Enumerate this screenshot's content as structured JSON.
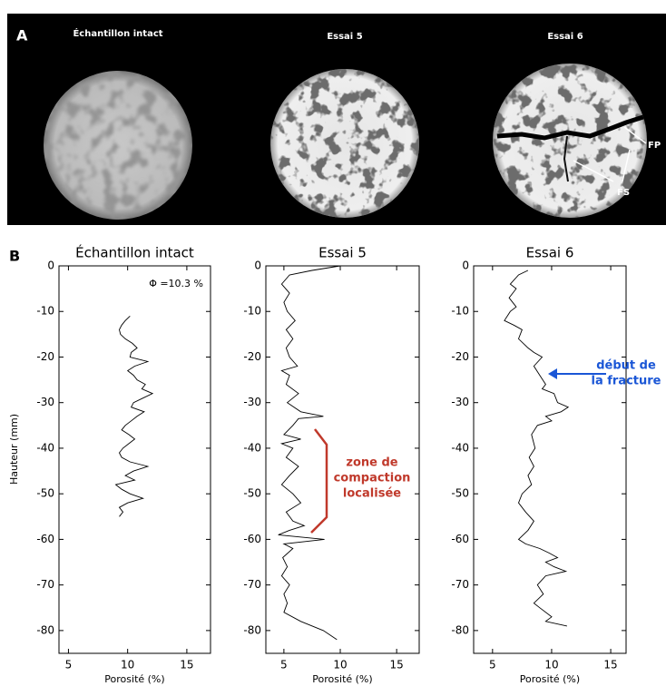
{
  "figure": {
    "panel_a": {
      "label": "A",
      "titles": [
        "Échantillon intact",
        "Essai 5",
        "Essai 6"
      ],
      "annotations": [
        "FP",
        "FS"
      ]
    },
    "panel_b": {
      "label": "B"
    }
  },
  "chart_data": [
    {
      "type": "line",
      "title": "Échantillon intact",
      "x_label": "Porosité (%)",
      "y_label": "Hauteur (mm)",
      "annotation": "Φ =10.3 %",
      "xlim": [
        4.2,
        17
      ],
      "ylim": [
        -85,
        0
      ],
      "xticks": [
        5,
        10,
        15
      ],
      "yticks": [
        0,
        -10,
        -20,
        -30,
        -40,
        -50,
        -60,
        -70,
        -80
      ],
      "series": [
        {
          "color": "#000000",
          "x": [
            10.2,
            9.8,
            9.5,
            9.3,
            9.4,
            9.8,
            10.4,
            10.8,
            10.3,
            10.2,
            11.7,
            10.6,
            10.0,
            10.5,
            10.8,
            11.5,
            11.2,
            12.1,
            11.3,
            10.5,
            10.3,
            11.4,
            10.8,
            10.3,
            9.8,
            9.5,
            10.1,
            10.6,
            10.1,
            9.6,
            9.3,
            9.5,
            10.2,
            11.7,
            10.5,
            9.8,
            10.6,
            9.0,
            9.5,
            10.2,
            11.3,
            10.0,
            9.3,
            9.6,
            9.3
          ],
          "values": [
            -11,
            -12,
            -13,
            -14,
            -15,
            -16,
            -17,
            -18,
            -19,
            -20,
            -21,
            -22,
            -23,
            -24,
            -25,
            -26,
            -27,
            -28,
            -29,
            -30,
            -31,
            -32,
            -33,
            -34,
            -35,
            -36,
            -37,
            -38,
            -39,
            -40,
            -41,
            -42,
            -43,
            -44,
            -45,
            -46,
            -47,
            -48,
            -49,
            -50,
            -51,
            -52,
            -53,
            -54,
            -55
          ]
        }
      ]
    },
    {
      "type": "line",
      "title": "Essai 5",
      "x_label": "Porosité (%)",
      "annotation_lines": [
        "zone de",
        "compaction",
        "localisée"
      ],
      "annotation_color": "#c0392b",
      "xlim": [
        3.4,
        17
      ],
      "ylim": [
        -85,
        0
      ],
      "xticks": [
        5,
        10,
        15
      ],
      "yticks": [
        0,
        -10,
        -20,
        -30,
        -40,
        -50,
        -60,
        -70,
        -80
      ],
      "series": [
        {
          "color": "#000000",
          "x": [
            10,
            7.5,
            5.5,
            4.8,
            5.5,
            5.0,
            5.3,
            6.0,
            5.2,
            5.8,
            5.2,
            5.5,
            6.2,
            4.8,
            5.5,
            5.2,
            6.3,
            5.3,
            6.5,
            8.5,
            6.3,
            5.8,
            5.0,
            6.5,
            4.8,
            5.8,
            5.2,
            6.3,
            5.5,
            4.8,
            5.8,
            6.5,
            5.2,
            5.8,
            6.8,
            5.5,
            4.5,
            8.6,
            5.0,
            5.8,
            4.9,
            5.3,
            4.8,
            5.5,
            5.0,
            5.3,
            5.0,
            6.5,
            8.5,
            9.7
          ],
          "values": [
            0,
            -1,
            -2,
            -4,
            -6,
            -8,
            -10,
            -12,
            -14,
            -16,
            -18,
            -20,
            -22,
            -23,
            -24,
            -26,
            -28,
            -30,
            -32,
            -33,
            -33.5,
            -35,
            -37,
            -38,
            -39,
            -40,
            -42,
            -44,
            -46,
            -48,
            -50,
            -52,
            -54,
            -56,
            -57,
            -58,
            -59,
            -60,
            -61,
            -62,
            -64,
            -66,
            -68,
            -70,
            -72,
            -74,
            -76,
            -78,
            -80,
            -82
          ]
        }
      ]
    },
    {
      "type": "line",
      "title": "Essai 6",
      "x_label": "Porosité (%)",
      "annotation_lines": [
        "début de",
        "la fracture"
      ],
      "annotation_color": "#1a56d6",
      "xlim": [
        3.4,
        16.3
      ],
      "ylim": [
        -85,
        0
      ],
      "xticks": [
        5,
        10,
        15
      ],
      "yticks": [
        0,
        -10,
        -20,
        -30,
        -40,
        -50,
        -60,
        -70,
        -80
      ],
      "series": [
        {
          "color": "#000000",
          "x": [
            8,
            7.2,
            6.5,
            7.0,
            6.4,
            7.0,
            6.5,
            6.0,
            6.8,
            7.5,
            7.2,
            8.0,
            8.5,
            9.2,
            8.5,
            9.0,
            9.5,
            9.2,
            10.2,
            10.5,
            11.4,
            10.8,
            9.5,
            10.0,
            8.8,
            8.3,
            8.6,
            8.1,
            8.5,
            8.0,
            8.3,
            7.5,
            7.2,
            7.8,
            8.5,
            8.0,
            7.2,
            7.8,
            9.0,
            9.8,
            10.5,
            9.5,
            10.2,
            11.2,
            9.5,
            8.8,
            9.3,
            8.5,
            9.0,
            10.0,
            9.5,
            11.3
          ],
          "values": [
            -1,
            -2,
            -4,
            -5,
            -7,
            -9,
            -10,
            -12,
            -13,
            -14,
            -16,
            -18,
            -19,
            -20,
            -22,
            -24,
            -26,
            -27,
            -28,
            -30,
            -31,
            -32,
            -33,
            -34,
            -35,
            -37,
            -40,
            -42,
            -44,
            -46,
            -48,
            -50,
            -52,
            -54,
            -56,
            -58,
            -60,
            -61,
            -62,
            -63,
            -64,
            -65,
            -66,
            -67,
            -68,
            -70,
            -72,
            -74,
            -75,
            -77,
            -78,
            -79
          ]
        }
      ]
    }
  ]
}
